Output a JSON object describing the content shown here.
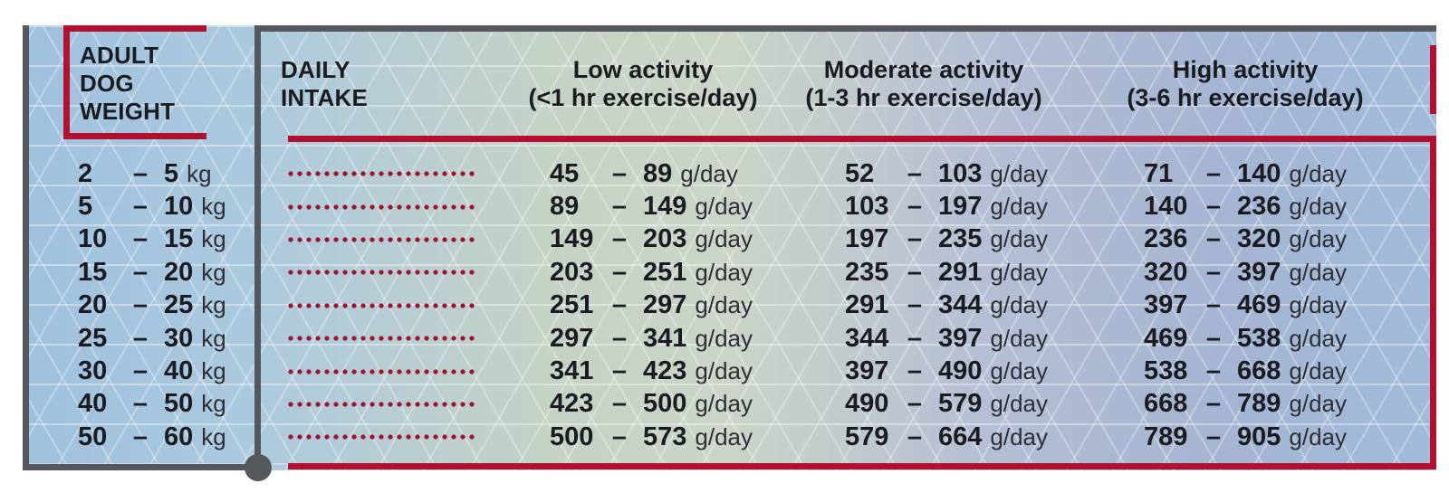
{
  "colors": {
    "accent_red": "#b30f2f",
    "dot_red": "#9e1430",
    "frame_grey": "#55585d",
    "text_dark": "#1b1c21"
  },
  "headers": {
    "weight_lines": [
      "ADULT",
      "DOG",
      "WEIGHT"
    ],
    "intake_lines": [
      "DAILY",
      "INTAKE"
    ],
    "low": {
      "title": "Low activity",
      "subtitle": "(<1 hr exercise/day)"
    },
    "moderate": {
      "title": "Moderate activity",
      "subtitle": "(1-3 hr exercise/day)"
    },
    "high": {
      "title": "High activity",
      "subtitle": "(3-6 hr exercise/day)"
    }
  },
  "units": {
    "weight": "kg",
    "intake": "g/day"
  },
  "dash": "–",
  "rows": [
    {
      "weight": [
        "2",
        "5"
      ],
      "low": [
        "45",
        "89"
      ],
      "moderate": [
        "52",
        "103"
      ],
      "high": [
        "71",
        "140"
      ]
    },
    {
      "weight": [
        "5",
        "10"
      ],
      "low": [
        "89",
        "149"
      ],
      "moderate": [
        "103",
        "197"
      ],
      "high": [
        "140",
        "236"
      ]
    },
    {
      "weight": [
        "10",
        "15"
      ],
      "low": [
        "149",
        "203"
      ],
      "moderate": [
        "197",
        "235"
      ],
      "high": [
        "236",
        "320"
      ]
    },
    {
      "weight": [
        "15",
        "20"
      ],
      "low": [
        "203",
        "251"
      ],
      "moderate": [
        "235",
        "291"
      ],
      "high": [
        "320",
        "397"
      ]
    },
    {
      "weight": [
        "20",
        "25"
      ],
      "low": [
        "251",
        "297"
      ],
      "moderate": [
        "291",
        "344"
      ],
      "high": [
        "397",
        "469"
      ]
    },
    {
      "weight": [
        "25",
        "30"
      ],
      "low": [
        "297",
        "341"
      ],
      "moderate": [
        "344",
        "397"
      ],
      "high": [
        "469",
        "538"
      ]
    },
    {
      "weight": [
        "30",
        "40"
      ],
      "low": [
        "341",
        "423"
      ],
      "moderate": [
        "397",
        "490"
      ],
      "high": [
        "538",
        "668"
      ]
    },
    {
      "weight": [
        "40",
        "50"
      ],
      "low": [
        "423",
        "500"
      ],
      "moderate": [
        "490",
        "579"
      ],
      "high": [
        "668",
        "789"
      ]
    },
    {
      "weight": [
        "50",
        "60"
      ],
      "low": [
        "500",
        "573"
      ],
      "moderate": [
        "579",
        "664"
      ],
      "high": [
        "789",
        "905"
      ]
    }
  ],
  "chart_data": {
    "type": "table",
    "title": "Adult dog daily food intake by weight and activity level",
    "weight_unit": "kg",
    "intake_unit": "g/day",
    "columns": [
      "Adult dog weight (kg)",
      "Daily intake - Low activity (<1 hr exercise/day)",
      "Daily intake - Moderate activity (1-3 hr exercise/day)",
      "Daily intake - High activity (3-6 hr exercise/day)"
    ],
    "rows": [
      {
        "weight_kg": [
          2,
          5
        ],
        "low_g_day": [
          45,
          89
        ],
        "moderate_g_day": [
          52,
          103
        ],
        "high_g_day": [
          71,
          140
        ]
      },
      {
        "weight_kg": [
          5,
          10
        ],
        "low_g_day": [
          89,
          149
        ],
        "moderate_g_day": [
          103,
          197
        ],
        "high_g_day": [
          140,
          236
        ]
      },
      {
        "weight_kg": [
          10,
          15
        ],
        "low_g_day": [
          149,
          203
        ],
        "moderate_g_day": [
          197,
          235
        ],
        "high_g_day": [
          236,
          320
        ]
      },
      {
        "weight_kg": [
          15,
          20
        ],
        "low_g_day": [
          203,
          251
        ],
        "moderate_g_day": [
          235,
          291
        ],
        "high_g_day": [
          320,
          397
        ]
      },
      {
        "weight_kg": [
          20,
          25
        ],
        "low_g_day": [
          251,
          297
        ],
        "moderate_g_day": [
          291,
          344
        ],
        "high_g_day": [
          397,
          469
        ]
      },
      {
        "weight_kg": [
          25,
          30
        ],
        "low_g_day": [
          297,
          341
        ],
        "moderate_g_day": [
          344,
          397
        ],
        "high_g_day": [
          469,
          538
        ]
      },
      {
        "weight_kg": [
          30,
          40
        ],
        "low_g_day": [
          341,
          423
        ],
        "moderate_g_day": [
          397,
          490
        ],
        "high_g_day": [
          538,
          668
        ]
      },
      {
        "weight_kg": [
          40,
          50
        ],
        "low_g_day": [
          423,
          500
        ],
        "moderate_g_day": [
          490,
          579
        ],
        "high_g_day": [
          668,
          789
        ]
      },
      {
        "weight_kg": [
          50,
          60
        ],
        "low_g_day": [
          500,
          573
        ],
        "moderate_g_day": [
          579,
          664
        ],
        "high_g_day": [
          789,
          905
        ]
      }
    ],
    "layout": {
      "grid": "triangular lattice pattern over blue-green-lavender gradient",
      "legend": "none"
    }
  }
}
